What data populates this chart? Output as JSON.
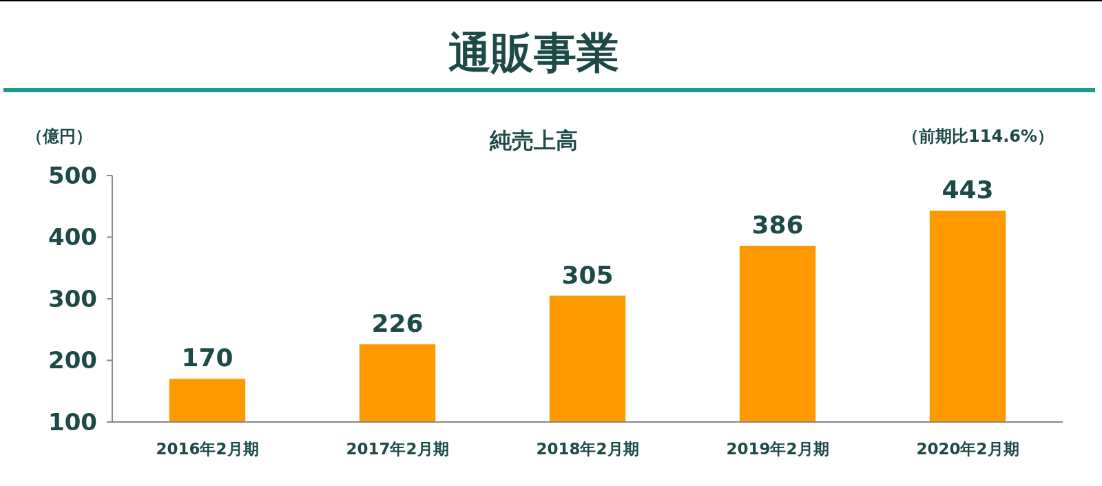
{
  "chart_data": {
    "type": "bar",
    "title": "通販事業",
    "subtitle": "純売上高",
    "ylabel": "（億円）",
    "annotations": [
      "（前期比114.6%）"
    ],
    "categories": [
      "2016年2月期",
      "2017年2月期",
      "2018年2月期",
      "2019年2月期",
      "2020年2月期"
    ],
    "values": [
      170,
      226,
      305,
      386,
      443
    ],
    "color": "#ff9900",
    "ylim": [
      100,
      500
    ],
    "yticks": [
      100,
      200,
      300,
      400,
      500
    ],
    "data_labels": true
  }
}
